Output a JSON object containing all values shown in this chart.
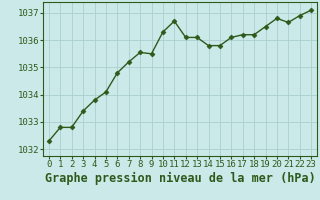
{
  "x": [
    0,
    1,
    2,
    3,
    4,
    5,
    6,
    7,
    8,
    9,
    10,
    11,
    12,
    13,
    14,
    15,
    16,
    17,
    18,
    19,
    20,
    21,
    22,
    23
  ],
  "y": [
    1032.3,
    1032.8,
    1032.8,
    1033.4,
    1033.8,
    1034.1,
    1034.8,
    1035.2,
    1035.55,
    1035.5,
    1036.3,
    1036.7,
    1036.1,
    1036.1,
    1035.8,
    1035.8,
    1036.1,
    1036.2,
    1036.2,
    1036.5,
    1036.8,
    1036.65,
    1036.9,
    1037.1
  ],
  "line_color": "#2d5a1b",
  "marker": "D",
  "marker_size": 2.5,
  "bg_color": "#cce9e9",
  "grid_color": "#aacfcf",
  "title": "Graphe pression niveau de la mer (hPa)",
  "xlim": [
    -0.5,
    23.5
  ],
  "ylim": [
    1031.75,
    1037.4
  ],
  "yticks": [
    1032,
    1033,
    1034,
    1035,
    1036,
    1037
  ],
  "xticks": [
    0,
    1,
    2,
    3,
    4,
    5,
    6,
    7,
    8,
    9,
    10,
    11,
    12,
    13,
    14,
    15,
    16,
    17,
    18,
    19,
    20,
    21,
    22,
    23
  ],
  "tick_color": "#2d5a1b",
  "title_fontsize": 8.5,
  "tick_fontsize": 6.5,
  "spine_color": "#2d5a1b",
  "title_color": "#2d5a1b",
  "title_fontweight": "bold",
  "linewidth": 1.0
}
